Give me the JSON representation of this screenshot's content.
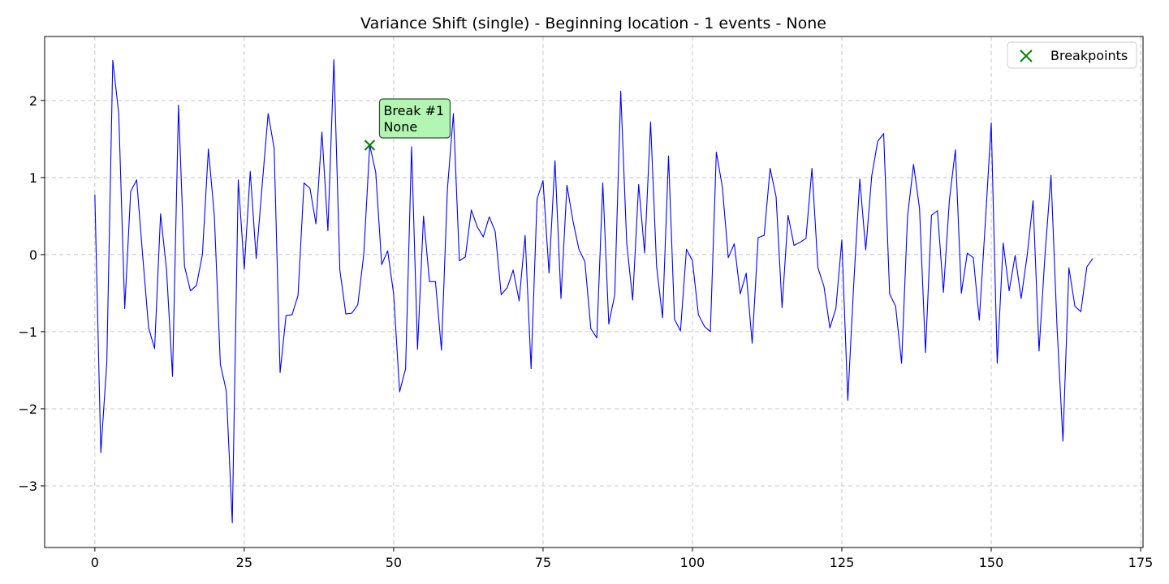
{
  "chart_data": {
    "type": "line",
    "title": "Variance Shift (single) - Beginning location - 1 events - None",
    "xlabel": "",
    "ylabel": "",
    "xlim": [
      -8.4,
      175.4
    ],
    "ylim": [
      -3.8,
      2.83
    ],
    "x_ticks": [
      0,
      25,
      50,
      75,
      100,
      125,
      150,
      175
    ],
    "y_ticks": [
      -3,
      -2,
      -1,
      0,
      1,
      2
    ],
    "grid": true,
    "legend_position": "top-right",
    "series": [
      {
        "color": "#0000ff",
        "values": [
          0.78,
          -2.57,
          -1.4,
          2.52,
          1.83,
          -0.7,
          0.82,
          0.97,
          -0.01,
          -0.95,
          -1.22,
          0.53,
          -0.2,
          -1.58,
          1.94,
          -0.15,
          -0.47,
          -0.4,
          0.0,
          1.37,
          0.5,
          -1.42,
          -1.77,
          -3.48,
          0.97,
          -0.19,
          1.08,
          -0.05,
          0.9,
          1.83,
          1.38,
          -1.53,
          -0.79,
          -0.78,
          -0.53,
          0.93,
          0.86,
          0.4,
          1.59,
          0.31,
          2.53,
          -0.2,
          -0.77,
          -0.76,
          -0.65,
          0.0,
          1.42,
          1.07,
          -0.13,
          0.05,
          -0.51,
          -1.78,
          -1.48,
          1.4,
          -1.23,
          0.5,
          -0.35,
          -0.35,
          -1.24,
          0.85,
          1.83,
          -0.08,
          -0.03,
          0.58,
          0.36,
          0.23,
          0.49,
          0.3,
          -0.52,
          -0.43,
          -0.2,
          -0.6,
          0.25,
          -1.48,
          0.72,
          0.96,
          -0.24,
          1.22,
          -0.57,
          0.9,
          0.44,
          0.07,
          -0.09,
          -0.96,
          -1.08,
          0.93,
          -0.9,
          -0.52,
          2.12,
          0.15,
          -0.59,
          0.91,
          0.02,
          1.72,
          -0.15,
          -0.82,
          1.28,
          -0.84,
          -0.99,
          0.07,
          -0.08,
          -0.78,
          -0.93,
          -1.0,
          1.33,
          0.88,
          -0.04,
          0.14,
          -0.51,
          -0.24,
          -1.15,
          0.22,
          0.25,
          1.12,
          0.75,
          -0.69,
          0.51,
          0.12,
          0.16,
          0.21,
          1.12,
          -0.17,
          -0.41,
          -0.95,
          -0.7,
          0.19,
          -1.89,
          -0.37,
          0.98,
          0.06,
          1.02,
          1.47,
          1.57,
          -0.51,
          -0.67,
          -1.41,
          0.5,
          1.17,
          0.6,
          -1.27,
          0.51,
          0.57,
          -0.49,
          0.71,
          1.36,
          -0.5,
          0.02,
          -0.04,
          -0.85,
          0.4,
          1.71,
          -1.41,
          0.15,
          -0.47,
          -0.01,
          -0.57,
          -0.02,
          0.7,
          -1.25,
          0.0,
          1.03,
          -0.92,
          -2.42,
          -0.17,
          -0.67,
          -0.74,
          -0.16,
          -0.05
        ]
      }
    ],
    "breakpoints": [
      {
        "x": 46,
        "y": 1.42,
        "label_line1": "Break #1",
        "label_line2": "None"
      }
    ],
    "legend": [
      {
        "label": "Breakpoints",
        "marker": "x",
        "color": "#008000"
      }
    ],
    "annotation_fill": "#b3f5b3"
  }
}
